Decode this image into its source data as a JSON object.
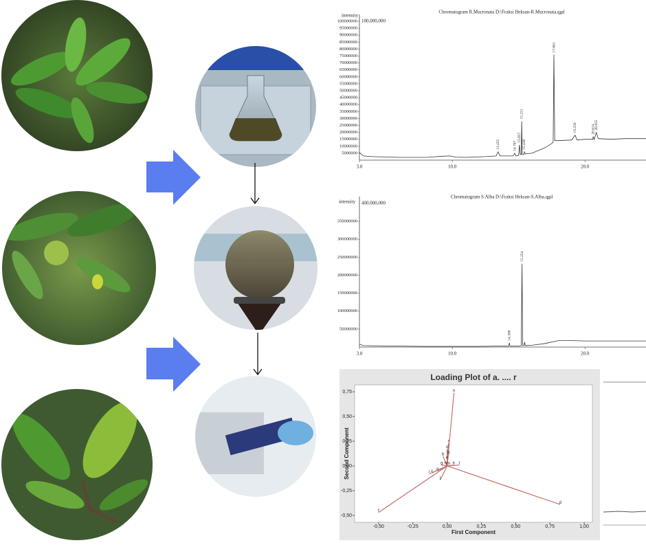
{
  "chart_data": [
    {
      "type": "line",
      "title": "Chromatogram R.Mucronata D:\\Fraksi Heksan-R.Mucronata.qgd",
      "y_label": "intensity",
      "annotation": "100,000,000",
      "color": "#333333",
      "xlim": [
        3.0,
        24.6
      ],
      "ylim": [
        0,
        100000000
      ],
      "xticks": [
        {
          "value": 3.0,
          "label": "3.0"
        },
        {
          "value": 10.0,
          "label": "10.0"
        },
        {
          "value": 20.0,
          "label": "20.0"
        }
      ],
      "yticks": [
        5000000,
        10000000,
        15000000,
        20000000,
        25000000,
        30000000,
        35000000,
        40000000,
        45000000,
        50000000,
        55000000,
        60000000,
        65000000,
        70000000,
        75000000,
        80000000,
        85000000,
        90000000,
        95000000,
        100000000
      ],
      "x": [
        3.0,
        3.3,
        4,
        6,
        8,
        9.3,
        9.8,
        10.3,
        11,
        12.5,
        13.3,
        13.455,
        13.6,
        14.6,
        14.707,
        14.8,
        15.0,
        15.057,
        15.12,
        15.2,
        15.231,
        15.27,
        15.4,
        15.43,
        15.5,
        16,
        16.5,
        17,
        17.5,
        17.6,
        17.661,
        17.72,
        18,
        19,
        19.256,
        19.4,
        20,
        20.6,
        20.614,
        20.7,
        20.855,
        21,
        22,
        23,
        24.6
      ],
      "values": [
        5500000,
        3000000,
        2500000,
        2000000,
        2000000,
        2800000,
        3000000,
        2200000,
        2000000,
        2500000,
        3000000,
        6000000,
        3000000,
        3000000,
        5000000,
        3000000,
        3500000,
        11000000,
        4000000,
        4000000,
        28000000,
        4000000,
        4000000,
        6000000,
        4500000,
        5000000,
        7000000,
        9000000,
        12000000,
        13000000,
        76000000,
        14000000,
        14000000,
        14500000,
        18000000,
        14500000,
        15000000,
        15000000,
        17000000,
        15000000,
        20000000,
        15500000,
        15000000,
        15500000,
        15500000
      ],
      "peaks": [
        13.455,
        14.707,
        15.057,
        15.231,
        {
          "value": 15.43,
          "label": "15.430"
        },
        17.661,
        19.256,
        20.614,
        20.855
      ]
    },
    {
      "type": "line",
      "title": "Chromatogram S.Alba D:\\Fraksi Heksan-S.Alba.qgd",
      "y_label": "intensity",
      "annotation": "400,000,000",
      "color": "#333333",
      "xlim": [
        3.0,
        24.6
      ],
      "ylim": [
        0,
        400000000
      ],
      "xticks": [
        {
          "value": 3.0,
          "label": "3.0"
        },
        {
          "value": 10.0,
          "label": "10.0"
        },
        {
          "value": 20.0,
          "label": "20.0"
        }
      ],
      "yticks": [
        50000000,
        100000000,
        150000000,
        200000000,
        250000000,
        300000000,
        350000000
      ],
      "x": [
        3.0,
        3.3,
        5,
        8,
        10,
        12,
        14,
        14.25,
        14.3,
        14.35,
        15,
        15.2,
        15.254,
        15.3,
        15.4,
        15.45,
        15.5,
        16,
        17,
        18,
        19,
        20,
        22,
        24.6
      ],
      "values": [
        8000000,
        4000000,
        3000000,
        2000000,
        2000000,
        2000000,
        3000000,
        3000000,
        12000000,
        3000000,
        3000000,
        4000000,
        232000000,
        4000000,
        4000000,
        14000000,
        4000000,
        5000000,
        10000000,
        18000000,
        18000000,
        17000000,
        17000000,
        17000000
      ],
      "peaks": [
        {
          "value": 14.3,
          "label": "14.300"
        },
        15.254
      ]
    },
    {
      "type": "scatter",
      "title": "Loading Plot of a. .... r",
      "x_label": "First Component",
      "y_label": "Second Component",
      "color": "#c0706c",
      "vectors": true,
      "xlim": [
        -0.675,
        1.06
      ],
      "ylim": [
        -0.57,
        0.82
      ],
      "xticks": [
        {
          "value": -0.5,
          "label": "-0,50"
        },
        {
          "value": -0.25,
          "label": "-0,25"
        },
        {
          "value": 0,
          "label": "0,00"
        },
        {
          "value": 0.25,
          "label": "0,25"
        },
        {
          "value": 0.5,
          "label": "0,50"
        },
        {
          "value": 0.75,
          "label": "0,75"
        },
        {
          "value": 1.0,
          "label": "1,00"
        }
      ],
      "yticks": [
        {
          "value": -0.5,
          "label": "-0,50"
        },
        {
          "value": -0.25,
          "label": "-0,25"
        },
        {
          "value": 0,
          "label": "0,00"
        },
        {
          "value": 0.25,
          "label": "0,25"
        },
        {
          "value": 0.5,
          "label": "0,50"
        },
        {
          "value": 0.75,
          "label": "0,75"
        }
      ],
      "labels": [
        "n",
        "f",
        "d",
        "r",
        "o",
        "q",
        "b",
        "e",
        "g",
        "h",
        "a",
        "c",
        "i",
        "j",
        "k",
        "l",
        "m"
      ],
      "x": [
        0.05,
        -0.5,
        0.825,
        0.01,
        0.0,
        0.01,
        -0.03,
        0.0,
        -0.04,
        -0.01,
        -0.07,
        -0.11,
        -0.13,
        -0.05,
        0.05,
        0.09,
        0.01
      ],
      "values": [
        0.74,
        -0.47,
        -0.39,
        0.23,
        0.17,
        0.12,
        0.1,
        0.065,
        0.01,
        0.01,
        -0.05,
        -0.07,
        -0.08,
        -0.14,
        0.01,
        0.01,
        0.005
      ]
    }
  ]
}
